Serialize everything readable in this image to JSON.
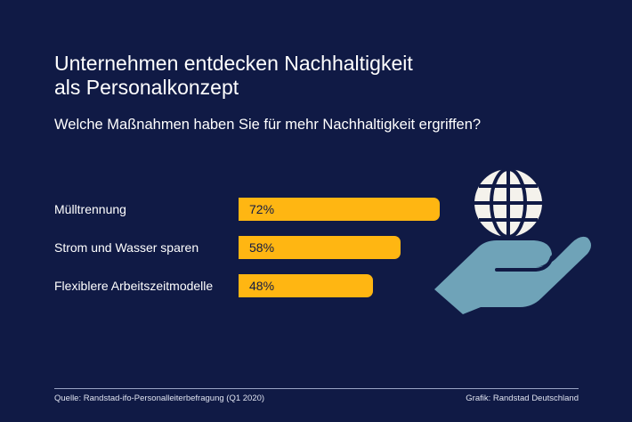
{
  "title": "Unternehmen entdecken Nachhaltigkeit als Personalkonzept",
  "subtitle": "Welche Maßnahmen haben Sie für mehr Nachhaltigkeit ergriffen?",
  "chart_data": {
    "type": "bar",
    "orientation": "horizontal",
    "title": "Unternehmen entdecken Nachhaltigkeit als Personalkonzept",
    "subtitle": "Welche Maßnahmen haben Sie für mehr Nachhaltigkeit ergriffen?",
    "categories": [
      "Mülltrennung",
      "Strom und Wasser sparen",
      "Flexiblere Arbeitszeitmodelle"
    ],
    "values": [
      72,
      58,
      48
    ],
    "value_labels": [
      "72%",
      "58%",
      "48%"
    ],
    "unit": "%",
    "xlim": [
      0,
      100
    ],
    "bar_color": "#ffb612"
  },
  "footer": {
    "source": "Quelle: Randstad-ifo-Personalleiterbefragung (Q1 2020)",
    "credit": "Grafik: Randstad Deutschland"
  },
  "colors": {
    "background": "#101a45",
    "bar": "#ffb612",
    "hand": "#6fa3b8",
    "globe": "#f4f2ec"
  },
  "icon": "hand-holding-globe-icon"
}
